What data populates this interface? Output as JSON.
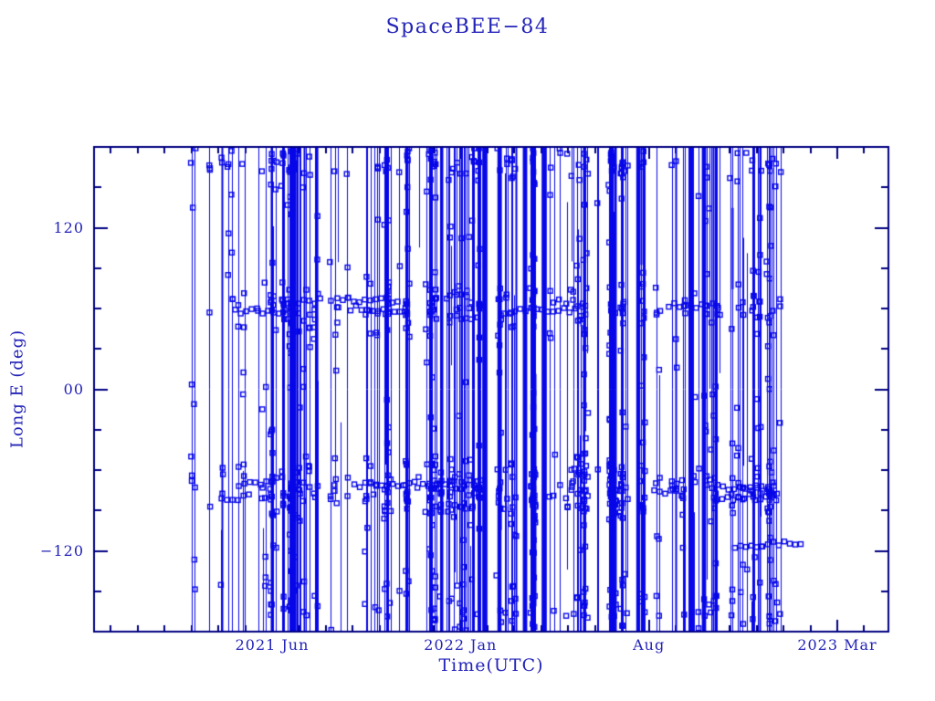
{
  "page": {
    "background": "#ffffff"
  },
  "chart_data": {
    "type": "line",
    "title": "SpaceBEE−84",
    "xlabel": "Time(UTC)",
    "ylabel": "Long E (deg)",
    "ylim": [
      -180,
      180
    ],
    "grid": false,
    "legend": "none",
    "y_major_ticks": [
      {
        "value": 120,
        "label": "120"
      },
      {
        "value": 0,
        "label": "00"
      },
      {
        "value": -120,
        "label": "−120"
      }
    ],
    "y_minor_step": 30,
    "x_major_ticks": [
      {
        "month_offset": 0,
        "label": "2021 Jun"
      },
      {
        "month_offset": 7,
        "label": "2022 Jan"
      },
      {
        "month_offset": 14,
        "label": "Aug"
      },
      {
        "month_offset": 21,
        "label": "2023 Mar"
      }
    ],
    "x_minor_step_months": 1,
    "x_axis_span_months": [
      -6.6,
      22.0
    ],
    "data_span_months": [
      -3.1,
      18.9
    ],
    "series": [
      {
        "name": "SpaceBEE−84 east longitude vs time",
        "marker": "open-square",
        "line_style": "thin-vertical-wrapping",
        "description": "Longitude drifts and wraps at ±180°, producing dense full-height vertical lines from ~Mar 2021 to ~Dec 2022; square markers cluster near +62°, −75°, +168° and −160°."
      }
    ],
    "colors": {
      "data": "#0707e8",
      "frame": "#000080",
      "text": "#2323b8"
    },
    "render_params": {
      "seed": 20210684,
      "clusters": 50,
      "singles": 70,
      "thick_bands": 10,
      "markers": 1050,
      "runs": 14,
      "marker_bands": [
        {
          "mean": 62,
          "sd": 10,
          "w": 0.18
        },
        {
          "mean": -75,
          "sd": 13,
          "w": 0.3
        },
        {
          "mean": 168,
          "sd": 7,
          "w": 0.12
        },
        {
          "mean": -160,
          "sd": 10,
          "w": 0.08
        },
        {
          "uniform": true,
          "w": 0.32
        }
      ]
    }
  }
}
